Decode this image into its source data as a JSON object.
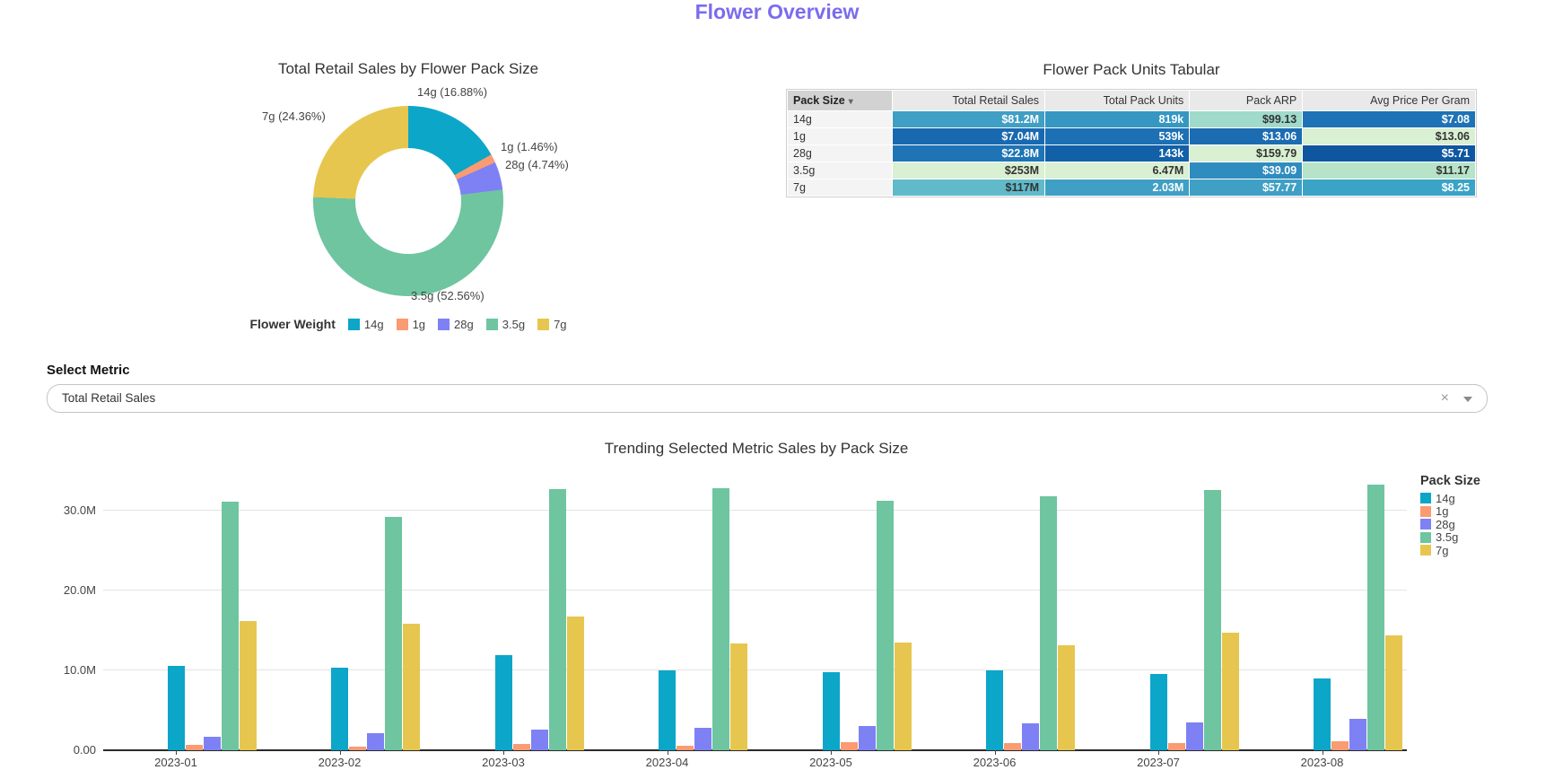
{
  "page": {
    "title": "Flower Overview",
    "accent_color": "#7a6cee"
  },
  "donut": {
    "title": "Total Retail Sales by Flower Pack Size",
    "legend_title": "Flower Weight"
  },
  "table": {
    "title": "Flower Pack Units Tabular",
    "columns": [
      "Pack Size",
      "Total Retail Sales",
      "Total Pack Units",
      "Pack ARP",
      "Avg Price Per Gram"
    ],
    "sort_column": "Pack Size",
    "rows": [
      {
        "pack_size": "14g",
        "cells": [
          {
            "text": "$81.2M",
            "bg": "#3f9fc4",
            "fg": "#ffffff"
          },
          {
            "text": "819k",
            "bg": "#3597c2",
            "fg": "#ffffff"
          },
          {
            "text": "$99.13",
            "bg": "#a0dacb",
            "fg": "#333333"
          },
          {
            "text": "$7.08",
            "bg": "#1d73b5",
            "fg": "#ffffff"
          }
        ]
      },
      {
        "pack_size": "1g",
        "cells": [
          {
            "text": "$7.04M",
            "bg": "#1969b0",
            "fg": "#ffffff"
          },
          {
            "text": "539k",
            "bg": "#1d70b3",
            "fg": "#ffffff"
          },
          {
            "text": "$13.06",
            "bg": "#1b6cb1",
            "fg": "#ffffff"
          },
          {
            "text": "$13.06",
            "bg": "#d9f0d2",
            "fg": "#333333"
          }
        ]
      },
      {
        "pack_size": "28g",
        "cells": [
          {
            "text": "$22.8M",
            "bg": "#1e74b5",
            "fg": "#ffffff"
          },
          {
            "text": "143k",
            "bg": "#1260a8",
            "fg": "#ffffff"
          },
          {
            "text": "$159.79",
            "bg": "#d9f0d2",
            "fg": "#333333"
          },
          {
            "text": "$5.71",
            "bg": "#0e56a0",
            "fg": "#ffffff"
          }
        ]
      },
      {
        "pack_size": "3.5g",
        "cells": [
          {
            "text": "$253M",
            "bg": "#d9f0d2",
            "fg": "#333333"
          },
          {
            "text": "6.47M",
            "bg": "#d9f0d2",
            "fg": "#333333"
          },
          {
            "text": "$39.09",
            "bg": "#2f8cbe",
            "fg": "#ffffff"
          },
          {
            "text": "$11.17",
            "bg": "#b7e4c9",
            "fg": "#333333"
          }
        ]
      },
      {
        "pack_size": "7g",
        "cells": [
          {
            "text": "$117M",
            "bg": "#60bac9",
            "fg": "#333333"
          },
          {
            "text": "2.03M",
            "bg": "#3f9fc4",
            "fg": "#ffffff"
          },
          {
            "text": "$57.77",
            "bg": "#3f9fc4",
            "fg": "#ffffff"
          },
          {
            "text": "$8.25",
            "bg": "#3aa3c6",
            "fg": "#ffffff"
          }
        ]
      }
    ]
  },
  "metric": {
    "label": "Select Metric",
    "value": "Total Retail Sales"
  },
  "chart_data": [
    {
      "type": "pie",
      "title": "Total Retail Sales by Flower Pack Size",
      "legend_title": "Flower Weight",
      "labels": [
        "14g",
        "1g",
        "28g",
        "3.5g",
        "7g"
      ],
      "values_pct": [
        16.88,
        1.46,
        4.74,
        52.56,
        24.36
      ],
      "colors": [
        "#0ca6c9",
        "#fa9b71",
        "#7e81f4",
        "#6ec5a0",
        "#e7c64f"
      ],
      "slice_labels": [
        "14g (16.88%)",
        "1g (1.46%)",
        "28g (4.74%)",
        "3.5g (52.56%)",
        "7g (24.36%)"
      ],
      "hole": 0.55,
      "legend_position": "bottom"
    },
    {
      "type": "bar",
      "title": "Trending Selected Metric Sales by Pack Size",
      "legend_title": "Pack Size",
      "categories": [
        "2023-01",
        "2023-02",
        "2023-03",
        "2023-04",
        "2023-05",
        "2023-06",
        "2023-07",
        "2023-08"
      ],
      "series": [
        {
          "name": "14g",
          "color": "#0ca6c9",
          "values": [
            10.6,
            10.3,
            11.9,
            10.0,
            9.8,
            10.0,
            9.5,
            9.0
          ]
        },
        {
          "name": "1g",
          "color": "#fa9b71",
          "values": [
            0.7,
            0.5,
            0.8,
            0.6,
            1.0,
            0.9,
            0.9,
            1.1
          ]
        },
        {
          "name": "28g",
          "color": "#7e81f4",
          "values": [
            1.7,
            2.1,
            2.6,
            2.8,
            3.0,
            3.4,
            3.5,
            3.9
          ]
        },
        {
          "name": "3.5g",
          "color": "#6ec5a0",
          "values": [
            31.1,
            29.2,
            32.7,
            32.8,
            31.2,
            31.8,
            32.6,
            33.3
          ]
        },
        {
          "name": "7g",
          "color": "#e7c64f",
          "values": [
            16.2,
            15.8,
            16.7,
            13.4,
            13.5,
            13.1,
            14.7,
            14.4
          ]
        }
      ],
      "unit": "M",
      "ylim": [
        0,
        35
      ],
      "yticks": [
        {
          "v": 0,
          "label": "0.00"
        },
        {
          "v": 10,
          "label": "10.0M"
        },
        {
          "v": 20,
          "label": "20.0M"
        },
        {
          "v": 30,
          "label": "30.0M"
        }
      ],
      "grid": true,
      "legend_position": "right"
    }
  ]
}
